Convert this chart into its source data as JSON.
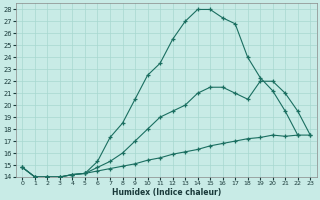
{
  "xlabel": "Humidex (Indice chaleur)",
  "ylabel": "",
  "bg_color": "#c8ebe6",
  "line_color": "#1a6e60",
  "grid_color": "#a8d8d0",
  "xlim": [
    -0.5,
    23.5
  ],
  "ylim": [
    14,
    28.5
  ],
  "xticks": [
    0,
    1,
    2,
    3,
    4,
    5,
    6,
    7,
    8,
    9,
    10,
    11,
    12,
    13,
    14,
    15,
    16,
    17,
    18,
    19,
    20,
    21,
    22,
    23
  ],
  "yticks": [
    14,
    15,
    16,
    17,
    18,
    19,
    20,
    21,
    22,
    23,
    24,
    25,
    26,
    27,
    28
  ],
  "lines": [
    {
      "x": [
        0,
        1,
        2,
        3,
        4,
        5,
        6,
        7,
        8,
        9,
        10,
        11,
        12,
        13,
        14,
        15,
        16,
        17,
        18,
        19,
        20,
        21,
        22
      ],
      "y": [
        14.8,
        14.0,
        14.0,
        14.0,
        14.2,
        14.3,
        15.3,
        17.3,
        18.5,
        20.5,
        22.5,
        23.5,
        25.5,
        27.0,
        28.0,
        28.0,
        27.3,
        26.8,
        24.0,
        22.3,
        21.2,
        19.5,
        17.5
      ]
    },
    {
      "x": [
        0,
        1,
        2,
        3,
        4,
        5,
        6,
        7,
        8,
        9,
        10,
        11,
        12,
        13,
        14,
        15,
        16,
        17,
        18,
        19,
        20,
        21,
        22,
        23
      ],
      "y": [
        14.8,
        14.0,
        14.0,
        14.0,
        14.2,
        14.3,
        14.8,
        15.3,
        16.0,
        17.0,
        18.0,
        19.0,
        19.5,
        20.0,
        21.0,
        21.5,
        21.5,
        21.0,
        20.5,
        22.0,
        22.0,
        21.0,
        19.5,
        17.5
      ]
    },
    {
      "x": [
        0,
        1,
        2,
        3,
        4,
        5,
        6,
        7,
        8,
        9,
        10,
        11,
        12,
        13,
        14,
        15,
        16,
        17,
        18,
        19,
        20,
        21,
        22,
        23
      ],
      "y": [
        14.8,
        14.0,
        14.0,
        14.0,
        14.2,
        14.3,
        14.5,
        14.7,
        14.9,
        15.1,
        15.4,
        15.6,
        15.9,
        16.1,
        16.3,
        16.6,
        16.8,
        17.0,
        17.2,
        17.3,
        17.5,
        17.4,
        17.5,
        17.5
      ]
    }
  ]
}
